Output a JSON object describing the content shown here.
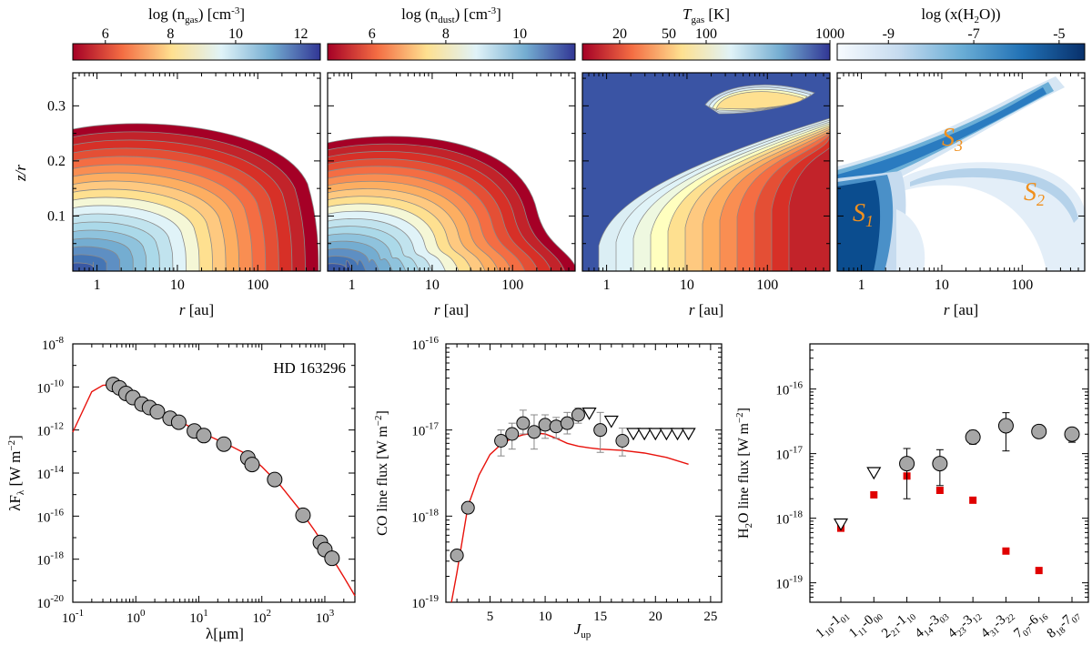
{
  "chart_data": [
    {
      "type": "heatmap",
      "colorbar": {
        "label_main": "log (n",
        "label_sub": "gas",
        "label_unit": ") [cm",
        "label_sup": "-3",
        "label_end": "]",
        "ticks": [
          "6",
          "8",
          "10",
          "12"
        ],
        "tick_values": [
          6,
          8,
          10,
          12
        ],
        "range": [
          5,
          12.6
        ],
        "colors": [
          "#a50026",
          "#f46d43",
          "#fee090",
          "#e0f3f8",
          "#74add1",
          "#313695"
        ]
      },
      "ylabel": "z/r",
      "yticks": [
        "0.1",
        "0.2",
        "0.3"
      ],
      "ytick_values": [
        0.1,
        0.2,
        0.3
      ],
      "ylim": [
        0,
        0.36
      ],
      "xlabel": "r [au]",
      "xticks": [
        "1",
        "10",
        "100"
      ],
      "xtick_values": [
        1,
        10,
        100
      ],
      "xlim": [
        0.5,
        600
      ],
      "xscale": "log",
      "annotations": []
    },
    {
      "type": "heatmap",
      "colorbar": {
        "label_main": "log (n",
        "label_sub": "dust",
        "label_unit": ") [cm",
        "label_sup": "-3",
        "label_end": "]",
        "ticks": [
          "6",
          "8",
          "10"
        ],
        "tick_values": [
          6,
          8,
          10
        ],
        "range": [
          4.8,
          11.5
        ],
        "colors": [
          "#a50026",
          "#f46d43",
          "#fee090",
          "#e0f3f8",
          "#74add1",
          "#313695"
        ]
      },
      "ylabel": "",
      "xlabel": "r [au]",
      "xticks": [
        "1",
        "10",
        "100"
      ],
      "xtick_values": [
        1,
        10,
        100
      ],
      "xlim": [
        0.5,
        600
      ],
      "xscale": "log",
      "annotations": []
    },
    {
      "type": "heatmap",
      "colorbar": {
        "label_main": "T",
        "label_sub": "gas",
        "label_unit": " [K]",
        "label_sup": "",
        "label_end": "",
        "ticks": [
          "20",
          "50",
          "100",
          "1000"
        ],
        "tick_values": [
          20,
          50,
          100,
          1000
        ],
        "range": [
          10,
          1000
        ],
        "scale": "log",
        "colors": [
          "#a50026",
          "#f46d43",
          "#fee090",
          "#e0f3f8",
          "#74add1",
          "#313695"
        ]
      },
      "ylabel": "",
      "xlabel": "r [au]",
      "xticks": [
        "1",
        "10",
        "100"
      ],
      "xtick_values": [
        1,
        10,
        100
      ],
      "xlim": [
        0.5,
        600
      ],
      "xscale": "log",
      "annotations": []
    },
    {
      "type": "heatmap",
      "colorbar": {
        "label_main": "log (x(H",
        "label_sub": "2",
        "label_unit": "O))",
        "label_sup": "",
        "label_end": "",
        "ticks": [
          "-9",
          "-7",
          "-5"
        ],
        "tick_values": [
          -9,
          -7,
          -5
        ],
        "range": [
          -10.2,
          -4.4
        ],
        "colors": [
          "#f7fbff",
          "#c6dbef",
          "#6baed6",
          "#2171b5",
          "#08306b"
        ]
      },
      "ylabel": "",
      "xlabel": "r [au]",
      "xticks": [
        "1",
        "10",
        "100"
      ],
      "xtick_values": [
        1,
        10,
        100
      ],
      "xlim": [
        0.5,
        600
      ],
      "xscale": "log",
      "annotations": [
        {
          "text": "S",
          "sub": "1"
        },
        {
          "text": "S",
          "sub": "2"
        },
        {
          "text": "S",
          "sub": "3"
        }
      ],
      "annotation_color": "#f0901e"
    },
    {
      "type": "scatter",
      "title": "HD 163296",
      "xlabel": "λ[μm]",
      "ylabel": "λF",
      "ylabel_sub": "λ",
      "ylabel_unit": " [W m",
      "ylabel_sup": "−2",
      "ylabel_end": "]",
      "xscale": "log",
      "yscale": "log",
      "xlim": [
        0.1,
        3000
      ],
      "ylim": [
        1e-20,
        1e-08
      ],
      "xticks": [
        {
          "b": "10",
          "e": "-1",
          "v": 0.1
        },
        {
          "b": "10",
          "e": "0",
          "v": 1
        },
        {
          "b": "10",
          "e": "1",
          "v": 10
        },
        {
          "b": "10",
          "e": "2",
          "v": 100
        },
        {
          "b": "10",
          "e": "3",
          "v": 1000
        }
      ],
      "yticks": [
        {
          "b": "10",
          "e": "-20",
          "v": 1e-20
        },
        {
          "b": "10",
          "e": "-18",
          "v": 1e-18
        },
        {
          "b": "10",
          "e": "-16",
          "v": 1e-16
        },
        {
          "b": "10",
          "e": "-14",
          "v": 1e-14
        },
        {
          "b": "10",
          "e": "-12",
          "v": 1e-12
        },
        {
          "b": "10",
          "e": "-10",
          "v": 1e-10
        },
        {
          "b": "10",
          "e": "-8",
          "v": 1e-08
        }
      ],
      "observed": [
        [
          0.44,
          1.3e-10
        ],
        [
          0.55,
          9e-11
        ],
        [
          0.7,
          5e-11
        ],
        [
          0.9,
          3.2e-11
        ],
        [
          1.25,
          1.6e-11
        ],
        [
          1.65,
          1.1e-11
        ],
        [
          2.2,
          7e-12
        ],
        [
          3.5,
          3.5e-12
        ],
        [
          4.8,
          2.3e-12
        ],
        [
          8.5,
          9e-13
        ],
        [
          12,
          5.5e-13
        ],
        [
          25,
          2.2e-13
        ],
        [
          60,
          5e-14
        ],
        [
          70,
          2.5e-14
        ],
        [
          160,
          5e-15
        ],
        [
          450,
          1.1e-16
        ],
        [
          850,
          6e-18
        ],
        [
          1000,
          2.8e-18
        ],
        [
          1300,
          1.1e-18
        ]
      ],
      "model": [
        [
          0.1,
          8e-13
        ],
        [
          0.15,
          1e-11
        ],
        [
          0.2,
          6e-11
        ],
        [
          0.3,
          1.2e-10
        ],
        [
          0.45,
          1.3e-10
        ],
        [
          0.7,
          6e-11
        ],
        [
          1,
          3e-11
        ],
        [
          2,
          1e-11
        ],
        [
          4,
          3.5e-12
        ],
        [
          8,
          1.2e-12
        ],
        [
          15,
          5e-13
        ],
        [
          30,
          2e-13
        ],
        [
          60,
          7e-14
        ],
        [
          100,
          2e-14
        ],
        [
          200,
          2.5e-15
        ],
        [
          400,
          2e-16
        ],
        [
          700,
          2e-17
        ],
        [
          1000,
          4e-18
        ],
        [
          2000,
          1.5e-19
        ],
        [
          3000,
          2e-20
        ]
      ],
      "model_color": "#e8120c"
    },
    {
      "type": "scatter",
      "xlabel": "J",
      "xlabel_sub": "up",
      "ylabel": "CO line flux [W m",
      "ylabel_sup": "−2",
      "ylabel_end": "]",
      "xscale": "linear",
      "yscale": "log",
      "xlim": [
        1,
        26
      ],
      "ylim": [
        1e-19,
        1e-16
      ],
      "xticks": [
        {
          "t": "5",
          "v": 5
        },
        {
          "t": "10",
          "v": 10
        },
        {
          "t": "15",
          "v": 15
        },
        {
          "t": "20",
          "v": 20
        },
        {
          "t": "25",
          "v": 25
        }
      ],
      "yticks": [
        {
          "b": "10",
          "e": "-19",
          "v": 1e-19
        },
        {
          "b": "10",
          "e": "-18",
          "v": 1e-18
        },
        {
          "b": "10",
          "e": "-17",
          "v": 1e-17
        },
        {
          "b": "10",
          "e": "-16",
          "v": 1e-16
        }
      ],
      "observed": [
        [
          2,
          3.5e-19,
          0,
          0
        ],
        [
          3,
          1.25e-18,
          1.1e-18,
          1.45e-18
        ],
        [
          6,
          7.5e-18,
          5e-18,
          1e-17
        ],
        [
          7,
          9e-18,
          6e-18,
          1.2e-17
        ],
        [
          8,
          1.2e-17,
          9e-18,
          1.7e-17
        ],
        [
          9,
          9.5e-18,
          6e-18,
          1.5e-17
        ],
        [
          10,
          1.15e-17,
          8e-18,
          1.5e-17
        ],
        [
          11,
          1.1e-17,
          8e-18,
          1.4e-17
        ],
        [
          12,
          1.2e-17,
          9e-18,
          1.6e-17
        ],
        [
          13,
          1.5e-17,
          1.2e-17,
          1.8e-17
        ],
        [
          15,
          1e-17,
          5.5e-18,
          1.6e-17
        ],
        [
          17,
          7.5e-18,
          5e-18,
          1.05e-17
        ]
      ],
      "upper_limits": [
        [
          14,
          1.55e-17
        ],
        [
          16,
          1.25e-17
        ],
        [
          18,
          9e-18
        ],
        [
          19,
          9e-18
        ],
        [
          20,
          9e-18
        ],
        [
          21,
          9e-18
        ],
        [
          22,
          9e-18
        ],
        [
          23,
          9e-18
        ]
      ],
      "model": [
        [
          1.5,
          5e-20
        ],
        [
          2,
          2.2e-19
        ],
        [
          3,
          1.3e-18
        ],
        [
          4,
          3e-18
        ],
        [
          5,
          5.2e-18
        ],
        [
          6,
          6.8e-18
        ],
        [
          7,
          8e-18
        ],
        [
          8,
          8.8e-18
        ],
        [
          9,
          9.2e-18
        ],
        [
          10,
          9e-18
        ],
        [
          11,
          8e-18
        ],
        [
          12,
          7e-18
        ],
        [
          13,
          6.5e-18
        ],
        [
          14,
          6.2e-18
        ],
        [
          15,
          6e-18
        ],
        [
          17,
          5.8e-18
        ],
        [
          19,
          5.4e-18
        ],
        [
          21,
          4.8e-18
        ],
        [
          23,
          4e-18
        ]
      ],
      "model_color": "#e8120c"
    },
    {
      "type": "scatter",
      "ylabel": "H",
      "ylabel_sub": "2",
      "ylabel_unit": "O line flux [W m",
      "ylabel_sup": "−2",
      "ylabel_end": "]",
      "xscale": "category",
      "yscale": "log",
      "ylim": [
        5e-20,
        5e-16
      ],
      "categories": [
        {
          "a": "1",
          "as": "10",
          "b": "1",
          "bs": "01"
        },
        {
          "a": "1",
          "as": "11",
          "b": "0",
          "bs": "00"
        },
        {
          "a": "2",
          "as": "21",
          "b": "1",
          "bs": "10"
        },
        {
          "a": "4",
          "as": "14",
          "b": "3",
          "bs": "03"
        },
        {
          "a": "4",
          "as": "23",
          "b": "3",
          "bs": "12"
        },
        {
          "a": "4",
          "as": "31",
          "b": "3",
          "bs": "22"
        },
        {
          "a": "7",
          "as": "07",
          "b": "6",
          "bs": "16"
        },
        {
          "a": "8",
          "as": "18",
          "b": "7",
          "bs": "07"
        }
      ],
      "yticks": [
        {
          "b": "10",
          "e": "-19",
          "v": 1e-19
        },
        {
          "b": "10",
          "e": "-18",
          "v": 1e-18
        },
        {
          "b": "10",
          "e": "-17",
          "v": 1e-17
        },
        {
          "b": "10",
          "e": "-16",
          "v": 1e-16
        }
      ],
      "observed": [
        [
          2,
          7e-18,
          2e-18,
          1.2e-17
        ],
        [
          3,
          7e-18,
          3.2e-18,
          1.15e-17
        ],
        [
          4,
          1.8e-17,
          1.4e-17,
          2.3e-17
        ],
        [
          5,
          2.7e-17,
          1.1e-17,
          4.3e-17
        ],
        [
          6,
          2.2e-17,
          1.8e-17,
          2.7e-17
        ],
        [
          7,
          2e-17,
          1.5e-17,
          2.5e-17
        ]
      ],
      "upper_limits": [
        [
          0,
          8e-19
        ],
        [
          1,
          5e-18
        ]
      ],
      "model": [
        [
          0,
          7e-19
        ],
        [
          1,
          2.3e-18
        ],
        [
          2,
          4.5e-18
        ],
        [
          3,
          2.7e-18
        ],
        [
          4,
          1.9e-18
        ],
        [
          5,
          3.1e-19
        ],
        [
          6,
          1.55e-19
        ]
      ],
      "model_color": "#e8120c"
    }
  ]
}
